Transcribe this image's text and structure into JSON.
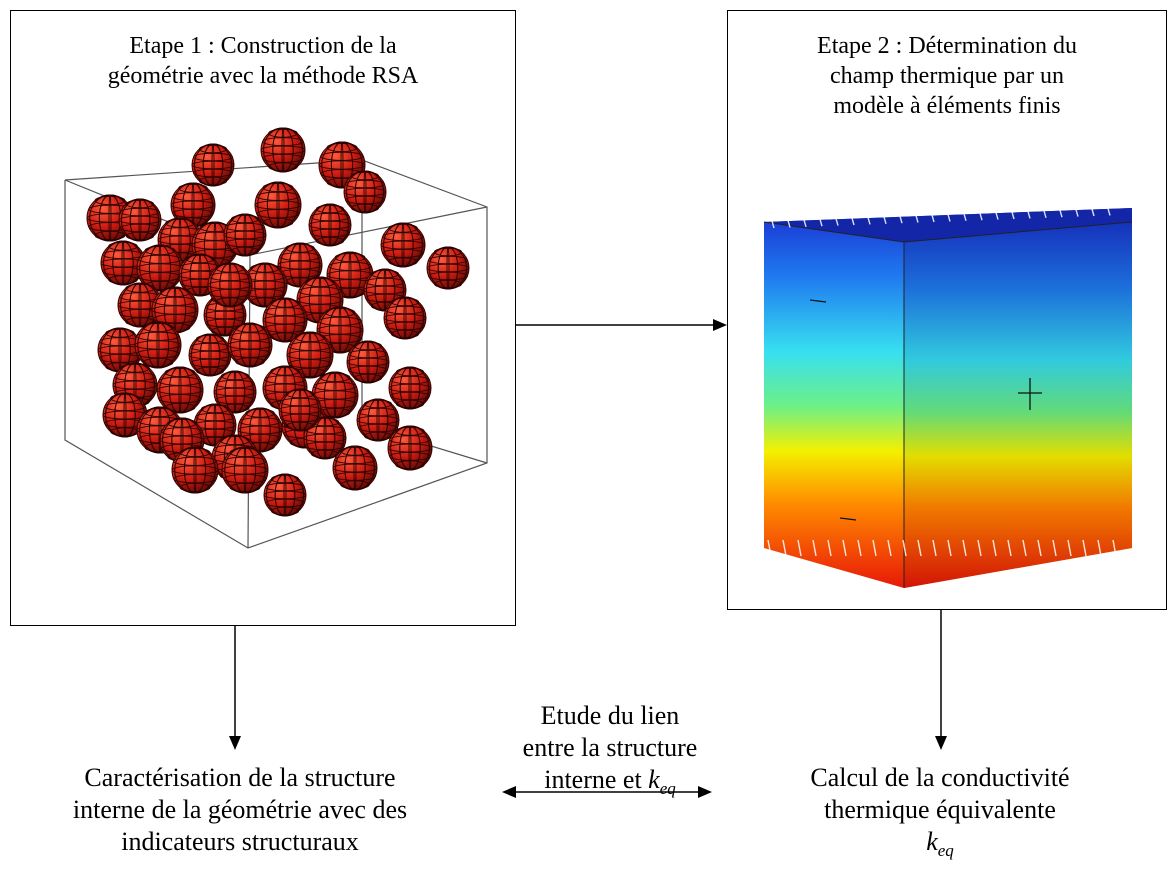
{
  "step1": {
    "title_line1": "Etape 1 : Construction de la",
    "title_line2": "géométrie avec la méthode RSA"
  },
  "step2": {
    "title_line1": "Etape 2 : Détermination du",
    "title_line2": "champ thermique par un",
    "title_line3": "modèle à éléments finis"
  },
  "link": {
    "line1": "Etude du lien",
    "line2": "entre la structure",
    "line3_prefix": "interne et ",
    "var": "k",
    "var_sub": "eq"
  },
  "characterisation": {
    "line1": "Caractérisation de la structure",
    "line2": "interne de la géométrie avec des",
    "line3": "indicateurs structuraux"
  },
  "calculation": {
    "line1": "Calcul de la conductivité",
    "line2": "thermique équivalente",
    "var": "k",
    "var_sub": "eq"
  },
  "colors": {
    "sphere": "#cc1a10",
    "sphere_dark": "#5a0a05",
    "heat_top": "#1a2fd0",
    "heat_mid": "#38e0f0",
    "heat_yellow": "#f4f000",
    "heat_bottom": "#e81808"
  }
}
